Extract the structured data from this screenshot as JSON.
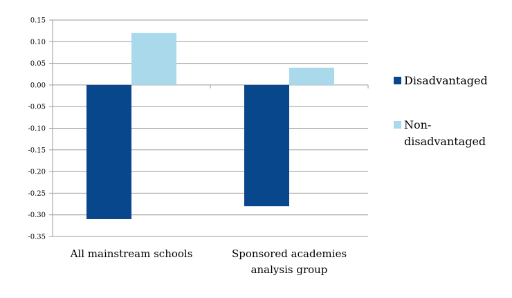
{
  "chart_data": {
    "type": "bar",
    "categories": [
      [
        "All mainstream schools"
      ],
      [
        "Sponsored academies",
        "analysis group"
      ]
    ],
    "series": [
      {
        "name": "Disadvantaged",
        "color": "#08478c",
        "values": [
          -0.31,
          -0.28
        ]
      },
      {
        "name": "Non-disadvantaged",
        "color": "#abd9ec",
        "values": [
          0.12,
          0.04
        ]
      }
    ],
    "ylim": [
      -0.35,
      0.15
    ],
    "yticks": [
      "0.15",
      "0.10",
      "0.05",
      "0.00",
      "-0.05",
      "-0.10",
      "-0.15",
      "-0.20",
      "-0.25",
      "-0.30",
      "-0.35"
    ],
    "grid": true,
    "legend_position": "right",
    "legend_labels": [
      [
        "Disadvantaged"
      ],
      [
        "Non-",
        "disadvantaged"
      ]
    ],
    "title": "",
    "xlabel": "",
    "ylabel": ""
  }
}
